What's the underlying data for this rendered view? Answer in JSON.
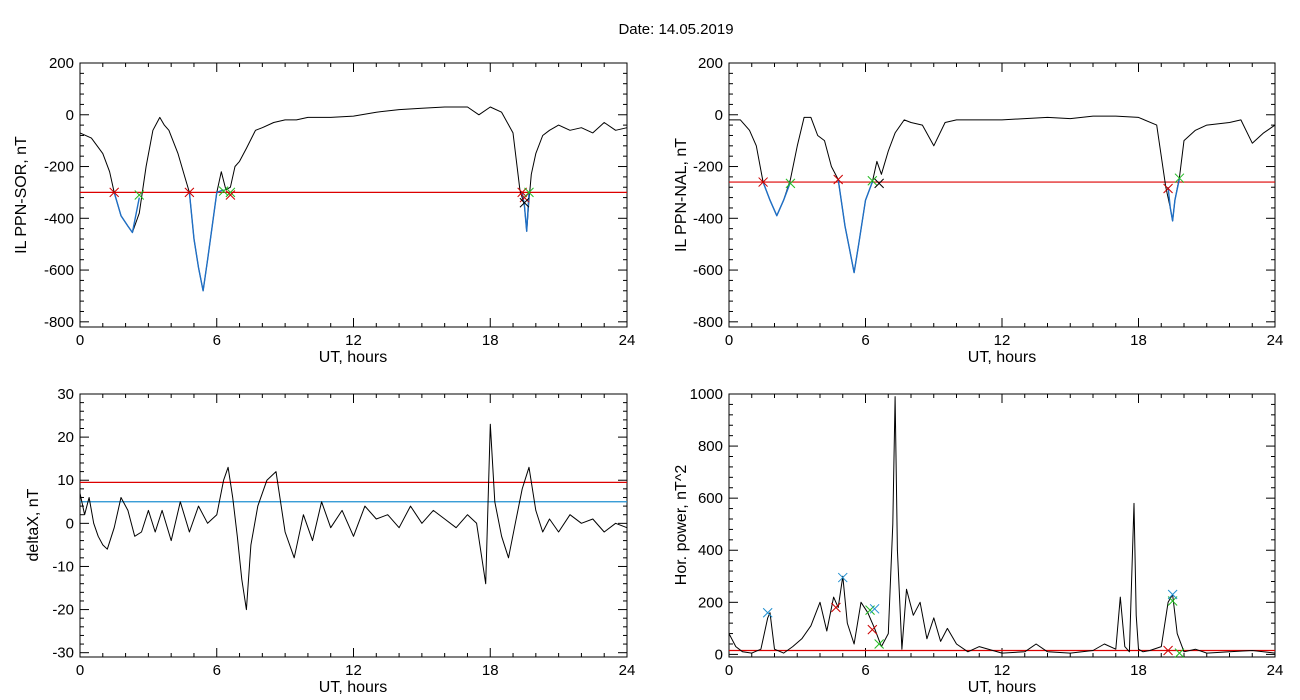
{
  "figure": {
    "title": "Date:  14.05.2019"
  },
  "chart_data": [
    {
      "id": "sor",
      "type": "line",
      "xlabel": "UT, hours",
      "ylabel": "IL PPN-SOR, nT",
      "xlim": [
        0,
        24
      ],
      "ylim": [
        -820,
        200
      ],
      "xticks": [
        0,
        6,
        12,
        18,
        24
      ],
      "yticks": [
        -800,
        -600,
        -400,
        -200,
        0,
        200
      ],
      "grid": false,
      "threshold": {
        "value": -300,
        "color": "#dd0000"
      },
      "series": [
        {
          "style": "black-line",
          "color": "#000000",
          "x": [
            0,
            0.5,
            1.0,
            1.3,
            1.5,
            1.8,
            2.1,
            2.3,
            2.6,
            2.9,
            3.2,
            3.5,
            3.7,
            3.9,
            4.3,
            4.6,
            4.8,
            5.0,
            5.2,
            5.4,
            5.6,
            5.8,
            6.0,
            6.2,
            6.4,
            6.6,
            6.8,
            7.0,
            7.3,
            7.7,
            8.0,
            8.5,
            9.0,
            9.5,
            10.0,
            11.0,
            12.0,
            13.0,
            14.0,
            15.0,
            16.0,
            17.0,
            17.5,
            18.0,
            18.5,
            19.0,
            19.3,
            19.5,
            19.6,
            19.7,
            19.8,
            20.0,
            20.3,
            20.6,
            21.0,
            21.5,
            22.0,
            22.5,
            23.0,
            23.5,
            24.0
          ],
          "y": [
            -70,
            -90,
            -150,
            -220,
            -300,
            -390,
            -430,
            -455,
            -380,
            -200,
            -60,
            -10,
            -40,
            -60,
            -150,
            -240,
            -300,
            -480,
            -590,
            -680,
            -560,
            -430,
            -300,
            -220,
            -290,
            -280,
            -200,
            -180,
            -130,
            -60,
            -50,
            -30,
            -20,
            -20,
            -10,
            -10,
            -5,
            10,
            20,
            25,
            30,
            30,
            0,
            30,
            10,
            -70,
            -290,
            -350,
            -450,
            -330,
            -230,
            -150,
            -80,
            -60,
            -40,
            -60,
            -50,
            -70,
            -30,
            -60,
            -50
          ]
        },
        {
          "style": "blue-segment",
          "color": "#1f6fc5",
          "x": [
            1.5,
            1.8,
            2.1,
            2.3,
            2.6
          ],
          "y": [
            -300,
            -390,
            -430,
            -455,
            -320
          ]
        },
        {
          "style": "blue-segment",
          "color": "#1f6fc5",
          "x": [
            4.8,
            5.0,
            5.2,
            5.4,
            5.6,
            5.8,
            6.0,
            6.3
          ],
          "y": [
            -300,
            -480,
            -590,
            -680,
            -560,
            -430,
            -300,
            -290
          ]
        },
        {
          "style": "blue-segment",
          "color": "#1f6fc5",
          "x": [
            19.4,
            19.5,
            19.6,
            19.7
          ],
          "y": [
            -300,
            -350,
            -450,
            -300
          ]
        }
      ],
      "markers": [
        {
          "x": 1.5,
          "y": -300,
          "color": "#cc0000"
        },
        {
          "x": 2.6,
          "y": -310,
          "color": "#22bb22"
        },
        {
          "x": 4.8,
          "y": -300,
          "color": "#cc0000"
        },
        {
          "x": 6.3,
          "y": -295,
          "color": "#22bb22"
        },
        {
          "x": 6.6,
          "y": -300,
          "color": "#22bb22"
        },
        {
          "x": 6.6,
          "y": -310,
          "color": "#cc0000"
        },
        {
          "x": 19.4,
          "y": -300,
          "color": "#cc0000"
        },
        {
          "x": 19.5,
          "y": -320,
          "color": "#cc0000"
        },
        {
          "x": 19.5,
          "y": -340,
          "color": "#000000"
        },
        {
          "x": 19.7,
          "y": -300,
          "color": "#22bb22"
        }
      ]
    },
    {
      "id": "nal",
      "type": "line",
      "xlabel": "UT, hours",
      "ylabel": "IL PPN-NAL, nT",
      "xlim": [
        0,
        24
      ],
      "ylim": [
        -820,
        200
      ],
      "xticks": [
        0,
        6,
        12,
        18,
        24
      ],
      "yticks": [
        -800,
        -600,
        -400,
        -200,
        0,
        200
      ],
      "grid": false,
      "threshold": {
        "value": -260,
        "color": "#dd0000"
      },
      "series": [
        {
          "style": "black-line",
          "color": "#000000",
          "x": [
            0,
            0.5,
            0.9,
            1.2,
            1.5,
            1.8,
            2.1,
            2.4,
            2.7,
            3.0,
            3.3,
            3.6,
            3.9,
            4.2,
            4.5,
            4.8,
            5.1,
            5.3,
            5.5,
            5.7,
            6.0,
            6.3,
            6.5,
            6.7,
            7.0,
            7.3,
            7.7,
            8.0,
            8.5,
            9.0,
            9.5,
            10.0,
            11.0,
            12.0,
            13.0,
            14.0,
            15.0,
            16.0,
            17.0,
            18.0,
            18.8,
            19.2,
            19.4,
            19.5,
            19.6,
            19.8,
            20.0,
            20.5,
            21.0,
            22.0,
            22.5,
            23.0,
            23.5,
            24.0
          ],
          "y": [
            -20,
            -20,
            -60,
            -120,
            -260,
            -330,
            -390,
            -330,
            -250,
            -120,
            -10,
            -10,
            -80,
            -100,
            -200,
            -250,
            -430,
            -520,
            -610,
            -500,
            -330,
            -260,
            -180,
            -230,
            -140,
            -70,
            -20,
            -30,
            -40,
            -120,
            -30,
            -20,
            -20,
            -20,
            -15,
            -10,
            -15,
            -5,
            -5,
            -10,
            -40,
            -280,
            -360,
            -410,
            -330,
            -240,
            -100,
            -60,
            -40,
            -30,
            -20,
            -110,
            -70,
            -40
          ]
        },
        {
          "style": "blue-segment",
          "color": "#1f6fc5",
          "x": [
            1.5,
            1.8,
            2.1,
            2.4,
            2.7
          ],
          "y": [
            -260,
            -330,
            -390,
            -330,
            -260
          ]
        },
        {
          "style": "blue-segment",
          "color": "#1f6fc5",
          "x": [
            4.8,
            5.1,
            5.3,
            5.5,
            5.7,
            6.0,
            6.3
          ],
          "y": [
            -250,
            -430,
            -520,
            -610,
            -500,
            -330,
            -260
          ]
        },
        {
          "style": "blue-segment",
          "color": "#1f6fc5",
          "x": [
            19.3,
            19.4,
            19.5,
            19.6,
            19.8
          ],
          "y": [
            -280,
            -360,
            -410,
            -330,
            -245
          ]
        }
      ],
      "markers": [
        {
          "x": 1.5,
          "y": -260,
          "color": "#cc0000"
        },
        {
          "x": 2.7,
          "y": -265,
          "color": "#22bb22"
        },
        {
          "x": 4.8,
          "y": -250,
          "color": "#cc0000"
        },
        {
          "x": 6.3,
          "y": -255,
          "color": "#22bb22"
        },
        {
          "x": 6.6,
          "y": -265,
          "color": "#000000"
        },
        {
          "x": 19.3,
          "y": -285,
          "color": "#cc0000"
        },
        {
          "x": 19.8,
          "y": -245,
          "color": "#22bb22"
        }
      ]
    },
    {
      "id": "deltax",
      "type": "line",
      "xlabel": "UT, hours",
      "ylabel": "deltaX, nT",
      "xlim": [
        0,
        24
      ],
      "ylim": [
        -31,
        30
      ],
      "xticks": [
        0,
        6,
        12,
        18,
        24
      ],
      "yticks": [
        -30,
        -20,
        -10,
        0,
        10,
        20,
        30
      ],
      "grid": false,
      "thresholds": [
        {
          "value": 9.5,
          "color": "#dd0000"
        },
        {
          "value": 5,
          "color": "#1f8fd0"
        }
      ],
      "series": [
        {
          "style": "black-line",
          "color": "#000000",
          "x": [
            0,
            0.2,
            0.4,
            0.6,
            0.8,
            1.0,
            1.2,
            1.5,
            1.8,
            2.1,
            2.4,
            2.7,
            3.0,
            3.3,
            3.6,
            4.0,
            4.4,
            4.8,
            5.2,
            5.6,
            6.0,
            6.3,
            6.5,
            6.7,
            6.9,
            7.1,
            7.3,
            7.5,
            7.8,
            8.2,
            8.6,
            9.0,
            9.4,
            9.8,
            10.2,
            10.6,
            11.0,
            11.5,
            12.0,
            12.5,
            13.0,
            13.5,
            14.0,
            14.5,
            15.0,
            15.5,
            16.0,
            16.5,
            17.0,
            17.4,
            17.8,
            18.0,
            18.2,
            18.5,
            18.8,
            19.1,
            19.4,
            19.7,
            20.0,
            20.3,
            20.6,
            21.0,
            21.5,
            22.0,
            22.5,
            23.0,
            23.5,
            24.0
          ],
          "y": [
            7,
            2,
            6,
            0,
            -3,
            -5,
            -6,
            -1,
            6,
            3,
            -3,
            -2,
            3,
            -2,
            3,
            -4,
            5,
            -2,
            4,
            0,
            2,
            10,
            13,
            6,
            -3,
            -13,
            -20,
            -5,
            4,
            10,
            12,
            -2,
            -8,
            2,
            -4,
            5,
            -1,
            3,
            -3,
            4,
            1,
            2,
            -1,
            4,
            0,
            3,
            1,
            -1,
            2,
            0,
            -14,
            23,
            5,
            -3,
            -8,
            0,
            8,
            13,
            3,
            -2,
            1,
            -2,
            2,
            0,
            1,
            -2,
            0,
            -1
          ]
        }
      ],
      "markers": []
    },
    {
      "id": "power",
      "type": "line",
      "xlabel": "UT, hours",
      "ylabel": "Hor. power, nT^2",
      "xlim": [
        0,
        24
      ],
      "ylim": [
        -10,
        1000
      ],
      "xticks": [
        0,
        6,
        12,
        18,
        24
      ],
      "yticks": [
        0,
        200,
        400,
        600,
        800,
        1000
      ],
      "grid": false,
      "threshold": {
        "value": 15,
        "color": "#dd0000"
      },
      "series": [
        {
          "style": "black-line",
          "color": "#000000",
          "x": [
            0,
            0.3,
            0.6,
            1.0,
            1.4,
            1.7,
            1.8,
            2.0,
            2.4,
            2.8,
            3.2,
            3.6,
            4.0,
            4.3,
            4.6,
            4.8,
            5.0,
            5.2,
            5.5,
            5.8,
            6.1,
            6.4,
            6.7,
            7.0,
            7.2,
            7.3,
            7.4,
            7.6,
            7.8,
            8.1,
            8.4,
            8.7,
            9.0,
            9.3,
            9.6,
            10.0,
            10.5,
            11.0,
            12.0,
            13.0,
            13.5,
            14.0,
            15.0,
            16.0,
            16.5,
            17.0,
            17.2,
            17.4,
            17.6,
            17.8,
            17.9,
            18.0,
            18.2,
            18.5,
            19.0,
            19.3,
            19.5,
            19.7,
            20.0,
            20.5,
            21.0,
            22.0,
            23.0,
            24.0
          ],
          "y": [
            80,
            30,
            10,
            5,
            20,
            140,
            160,
            20,
            5,
            30,
            60,
            110,
            200,
            90,
            220,
            180,
            300,
            120,
            40,
            200,
            160,
            100,
            30,
            80,
            500,
            990,
            400,
            20,
            250,
            150,
            200,
            60,
            140,
            50,
            100,
            40,
            10,
            30,
            5,
            10,
            40,
            10,
            5,
            15,
            40,
            20,
            220,
            30,
            10,
            580,
            150,
            20,
            10,
            15,
            30,
            200,
            230,
            80,
            10,
            20,
            5,
            10,
            15,
            5
          ]
        }
      ],
      "markers": [
        {
          "x": 1.7,
          "y": 160,
          "color": "#1f8fd0"
        },
        {
          "x": 4.7,
          "y": 180,
          "color": "#cc0000"
        },
        {
          "x": 5.0,
          "y": 295,
          "color": "#1f8fd0"
        },
        {
          "x": 6.2,
          "y": 170,
          "color": "#22bb22"
        },
        {
          "x": 6.4,
          "y": 175,
          "color": "#1f8fd0"
        },
        {
          "x": 6.3,
          "y": 95,
          "color": "#cc0000"
        },
        {
          "x": 6.6,
          "y": 40,
          "color": "#22bb22"
        },
        {
          "x": 19.5,
          "y": 205,
          "color": "#22bb22"
        },
        {
          "x": 19.5,
          "y": 230,
          "color": "#1f8fd0"
        },
        {
          "x": 19.3,
          "y": 15,
          "color": "#cc0000"
        },
        {
          "x": 19.8,
          "y": 5,
          "color": "#22bb22"
        }
      ]
    }
  ]
}
